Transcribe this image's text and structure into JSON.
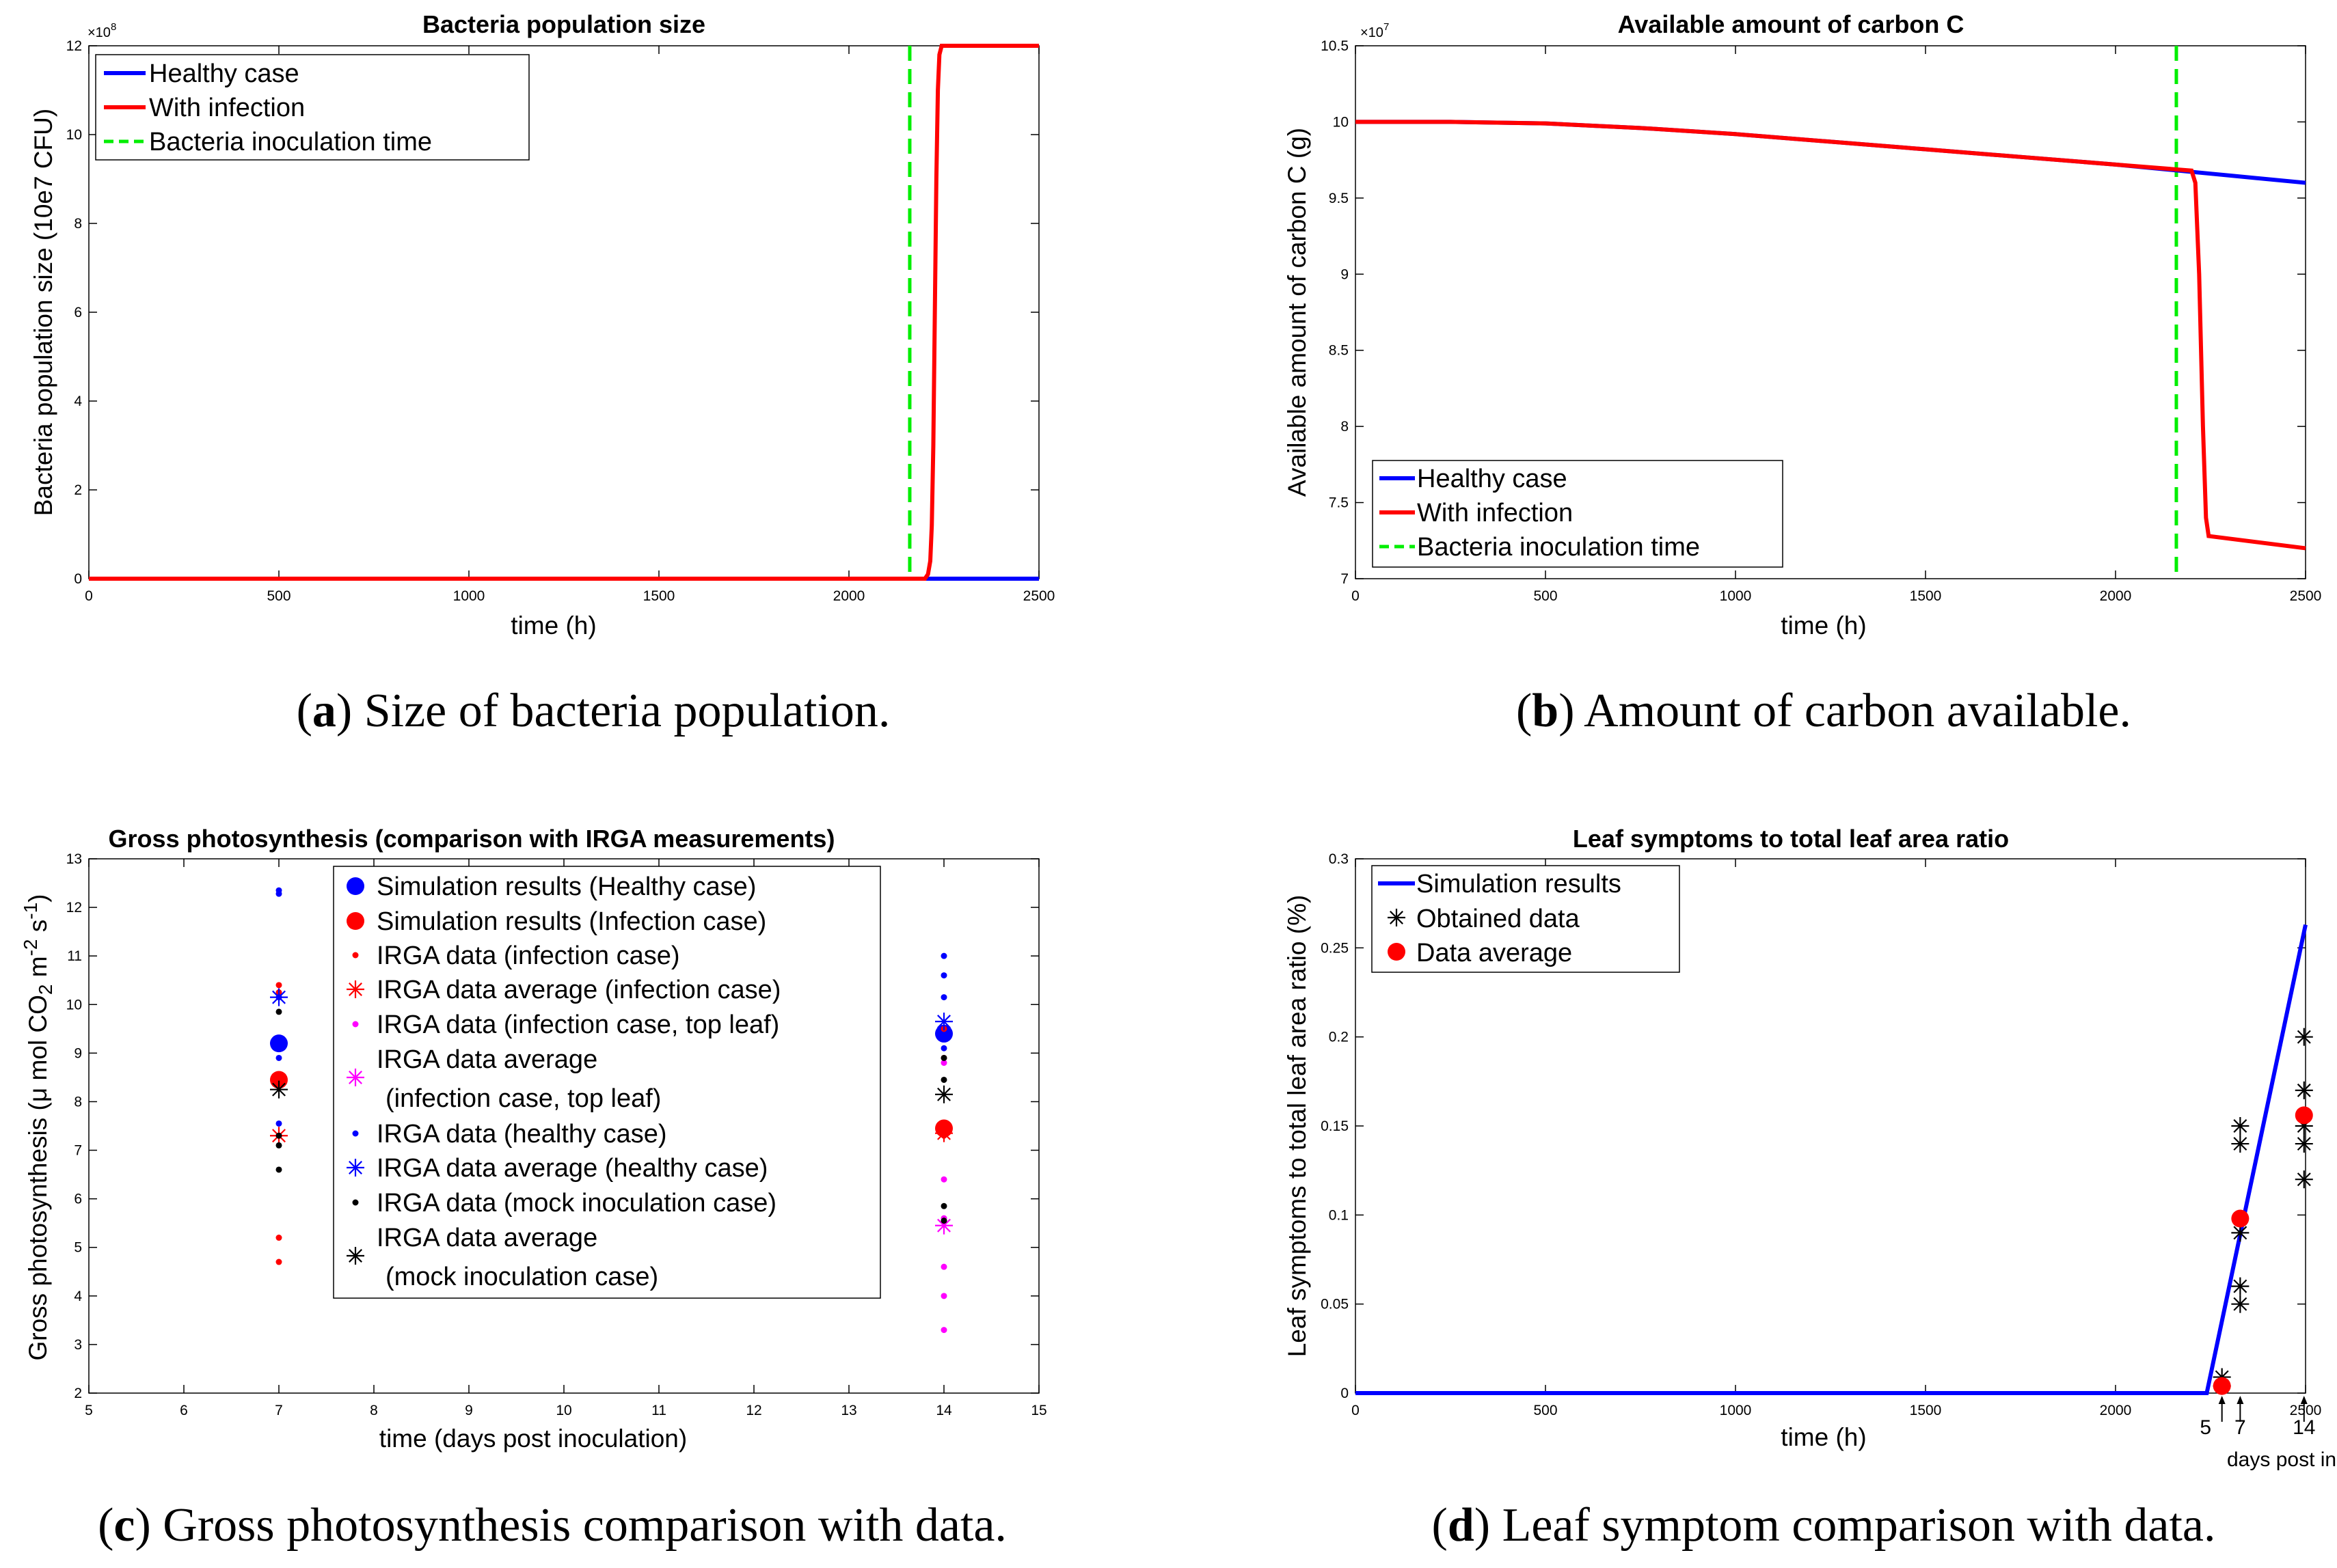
{
  "colors": {
    "healthy": "#0000ff",
    "infection": "#ff0000",
    "inoculation": "#00ee00",
    "magenta": "#ff00ff",
    "black": "#000000"
  },
  "chart_data": [
    {
      "id": "a",
      "type": "line",
      "title": "Bacteria population size",
      "xlabel": "time (h)",
      "ylabel": "Bacteria population size (10e7 CFU)",
      "y_exponent_base": "×10",
      "y_exponent": "8",
      "xlim": [
        0,
        2500
      ],
      "ylim": [
        0,
        12
      ],
      "xticks": [
        "0",
        "500",
        "1000",
        "1500",
        "2000",
        "2500"
      ],
      "yticks": [
        "0",
        "2",
        "4",
        "6",
        "8",
        "10",
        "12"
      ],
      "legend": [
        "Healthy case",
        "With infection",
        "Bacteria inoculation time"
      ],
      "inoculation_time": 2160,
      "series": [
        {
          "name": "Healthy case",
          "color": "#0000ff",
          "x": [
            0,
            2500
          ],
          "y": [
            0,
            0
          ]
        },
        {
          "name": "With infection",
          "color": "#ff0000",
          "x": [
            0,
            2200,
            2208,
            2214,
            2218,
            2222,
            2226,
            2230,
            2234,
            2238,
            2244,
            2500
          ],
          "y": [
            0,
            0,
            0.1,
            0.4,
            1.2,
            3,
            6,
            9,
            11,
            11.8,
            12,
            12
          ]
        }
      ],
      "caption_label": "a",
      "caption_text": "Size of bacteria population."
    },
    {
      "id": "b",
      "type": "line",
      "title": "Available amount of carbon C",
      "xlabel": "time (h)",
      "ylabel": "Available amount of carbon C (g)",
      "y_exponent_base": "×10",
      "y_exponent": "7",
      "xlim": [
        0,
        2500
      ],
      "ylim": [
        7,
        10.5
      ],
      "xticks": [
        "0",
        "500",
        "1000",
        "1500",
        "2000",
        "2500"
      ],
      "yticks": [
        "7",
        "7.5",
        "8",
        "8.5",
        "9",
        "9.5",
        "10",
        "10.5"
      ],
      "legend": [
        "Healthy case",
        "With infection",
        "Bacteria inoculation time"
      ],
      "inoculation_time": 2160,
      "series": [
        {
          "name": "Healthy case",
          "color": "#0000ff",
          "x": [
            0,
            250,
            500,
            750,
            1000,
            1250,
            1500,
            1750,
            2000,
            2250,
            2500
          ],
          "y": [
            10,
            10,
            9.99,
            9.96,
            9.92,
            9.87,
            9.82,
            9.77,
            9.72,
            9.66,
            9.6
          ]
        },
        {
          "name": "With infection",
          "color": "#ff0000",
          "x": [
            0,
            250,
            500,
            750,
            1000,
            1250,
            1500,
            1750,
            2000,
            2200,
            2210,
            2220,
            2230,
            2238,
            2245,
            2500
          ],
          "y": [
            10,
            10,
            9.99,
            9.96,
            9.92,
            9.87,
            9.82,
            9.77,
            9.72,
            9.68,
            9.6,
            9.0,
            8.0,
            7.4,
            7.28,
            7.2
          ]
        }
      ],
      "caption_label": "b",
      "caption_text": "Amount of carbon available."
    },
    {
      "id": "c",
      "type": "scatter",
      "title": "Gross photosynthesis (comparison with IRGA measurements)",
      "xlabel": "time (days post inoculation)",
      "ylabel_main": "Gross photosynthesis (",
      "ylabel_mu": "μ",
      "ylabel_mid": " mol CO",
      "ylabel_sub": "2",
      "ylabel_m": " m",
      "ylabel_sup1": "-2",
      "ylabel_s": " s",
      "ylabel_sup2": "-1",
      "ylabel_end": ")",
      "xlim": [
        5,
        15
      ],
      "ylim": [
        2,
        13
      ],
      "xticks": [
        "5",
        "6",
        "7",
        "8",
        "9",
        "10",
        "11",
        "12",
        "13",
        "14",
        "15"
      ],
      "yticks": [
        "2",
        "3",
        "4",
        "5",
        "6",
        "7",
        "8",
        "9",
        "10",
        "11",
        "12",
        "13"
      ],
      "legend": [
        "Simulation results (Healthy case)",
        "Simulation results (Infection case)",
        "IRGA data (infection case)",
        "IRGA data average (infection case)",
        "IRGA data (infection case, top leaf)",
        "IRGA data average",
        "(infection case, top leaf)",
        "IRGA data (healthy case)",
        "IRGA data average (healthy case)",
        "IRGA data (mock inoculation case)",
        "IRGA data average",
        "(mock inoculation case)"
      ],
      "series": [
        {
          "name": "Simulation results (Healthy case)",
          "marker": "bigdot",
          "color": "#0000ff",
          "x": [
            7,
            14
          ],
          "y": [
            9.2,
            9.4
          ]
        },
        {
          "name": "Simulation results (Infection case)",
          "marker": "bigdot",
          "color": "#ff0000",
          "x": [
            7,
            14
          ],
          "y": [
            8.45,
            7.45
          ]
        },
        {
          "name": "IRGA data (infection case)",
          "marker": "dot",
          "color": "#ff0000",
          "x": [
            7,
            7,
            7,
            7,
            7,
            7,
            14,
            14,
            14
          ],
          "y": [
            10.4,
            10.25,
            8.5,
            7.3,
            5.2,
            4.7,
            9.5,
            8.9,
            7.3
          ]
        },
        {
          "name": "IRGA data average (infection case)",
          "marker": "star",
          "color": "#ff0000",
          "x": [
            7,
            14
          ],
          "y": [
            7.3,
            7.35
          ]
        },
        {
          "name": "IRGA data (infection case, top leaf)",
          "marker": "dot",
          "color": "#ff00ff",
          "x": [
            14,
            14,
            14,
            14,
            14,
            14
          ],
          "y": [
            6.4,
            5.6,
            4.6,
            4.0,
            3.3,
            8.8
          ]
        },
        {
          "name": "IRGA data average (infection case, top leaf)",
          "marker": "star",
          "color": "#ff00ff",
          "x": [
            14
          ],
          "y": [
            5.45
          ]
        },
        {
          "name": "IRGA data (healthy case)",
          "marker": "dot",
          "color": "#0000ff",
          "x": [
            7,
            7,
            7,
            7,
            7,
            14,
            14,
            14,
            14
          ],
          "y": [
            12.35,
            12.28,
            10.15,
            8.9,
            7.55,
            11.0,
            10.6,
            10.15,
            9.1
          ]
        },
        {
          "name": "IRGA data average (healthy case)",
          "marker": "star",
          "color": "#0000ff",
          "x": [
            7,
            14
          ],
          "y": [
            10.15,
            9.65
          ]
        },
        {
          "name": "IRGA data (mock inoculation case)",
          "marker": "dot",
          "color": "#000000",
          "x": [
            7,
            7,
            7,
            7,
            14,
            14,
            14,
            14
          ],
          "y": [
            9.85,
            7.3,
            7.1,
            6.6,
            8.45,
            5.85,
            5.55,
            8.9
          ]
        },
        {
          "name": "IRGA data average (mock inoculation case)",
          "marker": "star",
          "color": "#000000",
          "x": [
            7,
            14
          ],
          "y": [
            8.25,
            8.15
          ]
        }
      ],
      "caption_label": "c",
      "caption_text": "Gross photosynthesis comparison with data."
    },
    {
      "id": "d",
      "type": "line",
      "title": "Leaf symptoms to total leaf area ratio",
      "xlabel": "time (h)",
      "ylabel": "Leaf symptoms to total leaf area ratio (%)",
      "xlim": [
        0,
        2500
      ],
      "ylim": [
        0,
        0.3
      ],
      "xticks": [
        "0",
        "500",
        "1000",
        "1500",
        "2000",
        "2500"
      ],
      "yticks": [
        "0",
        "0.05",
        "0.1",
        "0.15",
        "0.2",
        "0.25",
        "0.3"
      ],
      "legend": [
        "Simulation results",
        "Obtained data",
        "Data average"
      ],
      "day_markers": [
        "5",
        "7",
        "14"
      ],
      "day_marker_hours": [
        2280,
        2328,
        2496
      ],
      "days_label": "days post inoculation",
      "series": [
        {
          "name": "Simulation results",
          "color": "#0000ff",
          "x": [
            0,
            2240,
            2500
          ],
          "y": [
            0,
            0,
            0.263
          ]
        },
        {
          "name": "Obtained data",
          "marker": "star",
          "color": "#000000",
          "x": [
            2280,
            2280,
            2328,
            2328,
            2328,
            2328,
            2328,
            2496,
            2496,
            2496,
            2496,
            2496
          ],
          "y": [
            0.009,
            0.004,
            0.15,
            0.14,
            0.09,
            0.06,
            0.05,
            0.2,
            0.17,
            0.15,
            0.14,
            0.12
          ]
        },
        {
          "name": "Data average",
          "marker": "bigdot",
          "color": "#ff0000",
          "x": [
            2280,
            2328,
            2496
          ],
          "y": [
            0.004,
            0.098,
            0.156
          ]
        }
      ],
      "caption_label": "d",
      "caption_text": "Leaf symptom comparison with data."
    }
  ]
}
